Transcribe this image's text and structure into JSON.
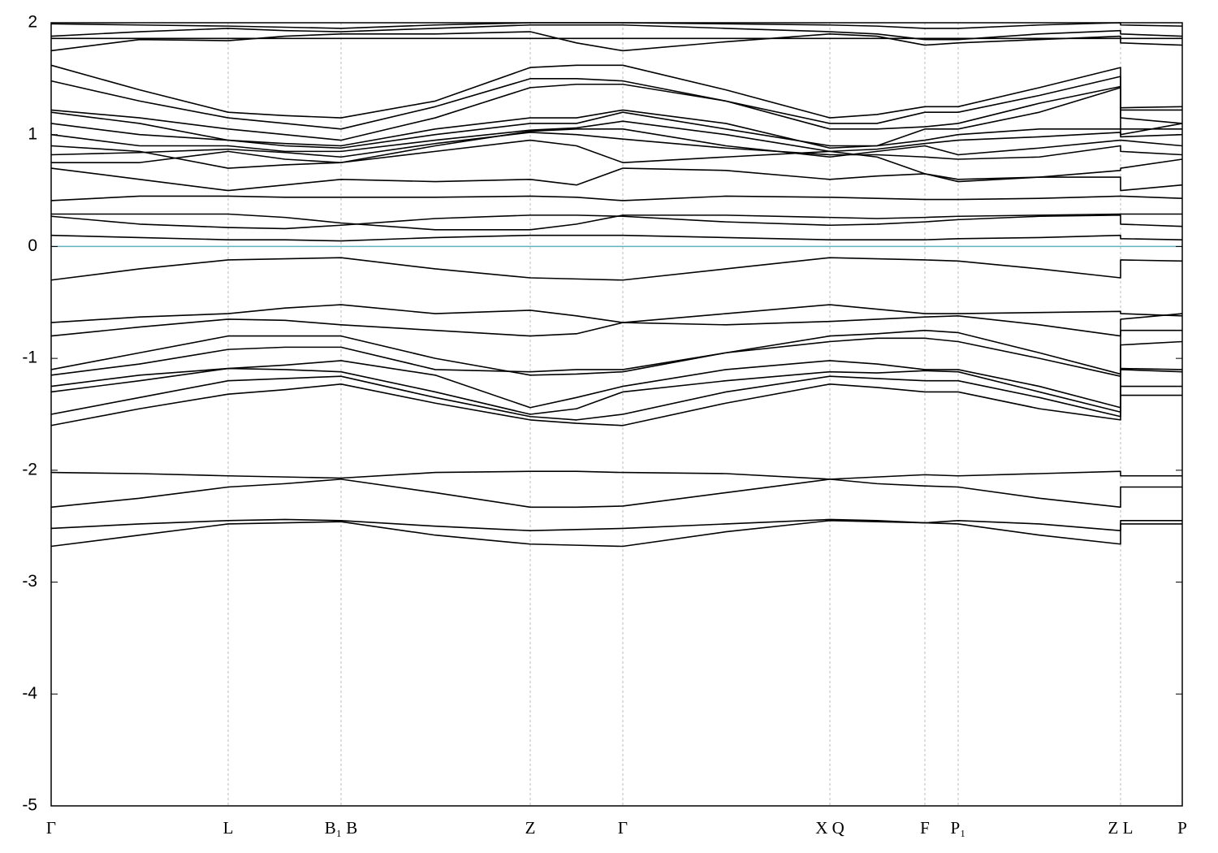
{
  "chart_data": {
    "type": "line",
    "xlim": [
      0,
      1393
    ],
    "ylim": [
      -5,
      2
    ],
    "yticks": [
      -5,
      -4,
      -3,
      -2,
      -1,
      0,
      1,
      2
    ],
    "xticks": [
      {
        "value": 0,
        "label": "Γ"
      },
      {
        "value": 218,
        "label": "L"
      },
      {
        "value": 357,
        "label": "B₁ B"
      },
      {
        "value": 590,
        "label": "Z"
      },
      {
        "value": 704,
        "label": "Γ"
      },
      {
        "value": 959,
        "label": "X Q"
      },
      {
        "value": 1076,
        "label": "F"
      },
      {
        "value": 1117,
        "label": "P₁"
      },
      {
        "value": 1317,
        "label": "Z L"
      },
      {
        "value": 1393,
        "label": "P"
      }
    ],
    "vgrid": true,
    "reference_line": {
      "value": 0,
      "color": "#5fb3c0"
    },
    "line_color": "#000000",
    "x": [
      0,
      109,
      218,
      288,
      357,
      473,
      590,
      647,
      704,
      831,
      959,
      1017,
      1076,
      1117,
      1217,
      1317,
      1317,
      1393
    ],
    "series": [
      {
        "values": [
          -0.3,
          -0.2,
          -0.12,
          -0.11,
          -0.1,
          -0.2,
          -0.28,
          -0.29,
          -0.3,
          -0.2,
          -0.1,
          -0.11,
          -0.12,
          -0.13,
          -0.2,
          -0.28,
          -0.12,
          -0.13
        ]
      },
      {
        "values": [
          -0.68,
          -0.63,
          -0.6,
          -0.55,
          -0.52,
          -0.6,
          -0.57,
          -0.62,
          -0.68,
          -0.6,
          -0.52,
          -0.56,
          -0.6,
          -0.6,
          -0.59,
          -0.58,
          -0.6,
          -0.62
        ]
      },
      {
        "values": [
          -0.8,
          -0.72,
          -0.65,
          -0.66,
          -0.7,
          -0.75,
          -0.8,
          -0.78,
          -0.68,
          -0.7,
          -0.67,
          -0.65,
          -0.63,
          -0.62,
          -0.7,
          -0.8,
          -0.65,
          -0.6
        ]
      },
      {
        "values": [
          -1.1,
          -0.95,
          -0.8,
          -0.8,
          -0.8,
          -1.0,
          -1.15,
          -1.14,
          -1.12,
          -0.95,
          -0.8,
          -0.78,
          -0.75,
          -0.77,
          -0.95,
          -1.14,
          -0.75,
          -0.75
        ]
      },
      {
        "values": [
          -1.15,
          -1.05,
          -0.92,
          -0.9,
          -0.9,
          -1.1,
          -1.12,
          -1.1,
          -1.1,
          -0.95,
          -0.85,
          -0.82,
          -0.82,
          -0.85,
          -1.0,
          -1.16,
          -0.88,
          -0.85
        ]
      },
      {
        "values": [
          -1.25,
          -1.15,
          -1.09,
          -1.06,
          -1.02,
          -1.15,
          -1.44,
          -1.35,
          -1.25,
          -1.1,
          -1.02,
          -1.05,
          -1.1,
          -1.1,
          -1.25,
          -1.44,
          -1.09,
          -1.1
        ]
      },
      {
        "values": [
          -1.3,
          -1.2,
          -1.09,
          -1.1,
          -1.12,
          -1.3,
          -1.5,
          -1.45,
          -1.3,
          -1.2,
          -1.12,
          -1.13,
          -1.11,
          -1.12,
          -1.3,
          -1.48,
          -1.1,
          -1.12
        ]
      },
      {
        "values": [
          -1.5,
          -1.35,
          -1.2,
          -1.18,
          -1.16,
          -1.35,
          -1.52,
          -1.55,
          -1.5,
          -1.3,
          -1.16,
          -1.18,
          -1.2,
          -1.2,
          -1.35,
          -1.52,
          -1.25,
          -1.25
        ]
      },
      {
        "values": [
          -1.6,
          -1.45,
          -1.32,
          -1.28,
          -1.23,
          -1.4,
          -1.55,
          -1.58,
          -1.6,
          -1.4,
          -1.23,
          -1.26,
          -1.3,
          -1.3,
          -1.45,
          -1.55,
          -1.33,
          -1.33
        ]
      },
      {
        "values": [
          -2.02,
          -2.03,
          -2.05,
          -2.06,
          -2.07,
          -2.02,
          -2.01,
          -2.01,
          -2.02,
          -2.03,
          -2.08,
          -2.06,
          -2.04,
          -2.05,
          -2.03,
          -2.01,
          -2.05,
          -2.05
        ]
      },
      {
        "values": [
          -2.33,
          -2.25,
          -2.15,
          -2.12,
          -2.08,
          -2.2,
          -2.33,
          -2.33,
          -2.32,
          -2.2,
          -2.08,
          -2.12,
          -2.14,
          -2.15,
          -2.25,
          -2.33,
          -2.15,
          -2.15
        ]
      },
      {
        "values": [
          -2.52,
          -2.48,
          -2.45,
          -2.44,
          -2.45,
          -2.5,
          -2.54,
          -2.53,
          -2.52,
          -2.48,
          -2.44,
          -2.45,
          -2.47,
          -2.45,
          -2.48,
          -2.54,
          -2.45,
          -2.45
        ]
      },
      {
        "values": [
          -2.68,
          -2.58,
          -2.48,
          -2.47,
          -2.46,
          -2.58,
          -2.66,
          -2.67,
          -2.68,
          -2.55,
          -2.45,
          -2.46,
          -2.47,
          -2.48,
          -2.58,
          -2.66,
          -2.48,
          -2.48
        ]
      },
      {
        "values": [
          0.1,
          0.08,
          0.06,
          0.06,
          0.05,
          0.08,
          0.1,
          0.1,
          0.1,
          0.08,
          0.06,
          0.06,
          0.06,
          0.07,
          0.08,
          0.1,
          0.07,
          0.06
        ]
      },
      {
        "values": [
          0.27,
          0.2,
          0.17,
          0.16,
          0.19,
          0.25,
          0.28,
          0.28,
          0.27,
          0.22,
          0.19,
          0.2,
          0.22,
          0.24,
          0.27,
          0.28,
          0.2,
          0.18
        ]
      },
      {
        "values": [
          0.29,
          0.29,
          0.29,
          0.26,
          0.21,
          0.15,
          0.15,
          0.2,
          0.28,
          0.28,
          0.26,
          0.25,
          0.26,
          0.27,
          0.28,
          0.29,
          0.29,
          0.29
        ]
      },
      {
        "values": [
          0.41,
          0.45,
          0.45,
          0.44,
          0.44,
          0.44,
          0.45,
          0.44,
          0.41,
          0.45,
          0.44,
          0.43,
          0.42,
          0.42,
          0.43,
          0.45,
          0.45,
          0.43
        ]
      },
      {
        "values": [
          0.7,
          0.6,
          0.5,
          0.55,
          0.6,
          0.58,
          0.6,
          0.55,
          0.7,
          0.68,
          0.6,
          0.63,
          0.65,
          0.6,
          0.62,
          0.62,
          0.5,
          0.55
        ]
      },
      {
        "values": [
          0.75,
          0.75,
          0.85,
          0.78,
          0.75,
          0.85,
          0.95,
          0.9,
          0.75,
          0.8,
          0.85,
          0.8,
          0.65,
          0.58,
          0.62,
          0.68,
          0.7,
          0.78
        ]
      },
      {
        "values": [
          0.82,
          0.84,
          0.87,
          0.84,
          0.8,
          0.92,
          1.02,
          1.0,
          0.96,
          0.88,
          0.82,
          0.82,
          0.8,
          0.78,
          0.8,
          0.9,
          0.85,
          0.82
        ]
      },
      {
        "values": [
          0.9,
          0.85,
          0.7,
          0.73,
          0.75,
          0.9,
          1.03,
          1.05,
          1.05,
          0.9,
          0.8,
          0.85,
          0.9,
          0.82,
          0.88,
          0.95,
          0.95,
          0.9
        ]
      },
      {
        "values": [
          1.0,
          0.9,
          0.9,
          0.85,
          0.85,
          0.95,
          1.04,
          1.06,
          1.12,
          1.0,
          0.85,
          0.87,
          0.92,
          0.95,
          0.98,
          1.02,
          0.98,
          1.0
        ]
      },
      {
        "values": [
          1.1,
          1.0,
          0.95,
          0.9,
          0.88,
          1.0,
          1.1,
          1.1,
          1.2,
          1.05,
          0.9,
          0.9,
          0.95,
          1.0,
          1.05,
          1.05,
          1.05,
          1.05
        ]
      },
      {
        "values": [
          1.2,
          1.1,
          0.95,
          0.92,
          0.9,
          1.05,
          1.15,
          1.15,
          1.22,
          1.1,
          0.88,
          0.9,
          1.05,
          1.05,
          1.2,
          1.42,
          1.0,
          1.1
        ]
      },
      {
        "values": [
          1.22,
          1.15,
          1.05,
          1.0,
          0.95,
          1.15,
          1.42,
          1.45,
          1.45,
          1.3,
          1.05,
          1.05,
          1.07,
          1.1,
          1.28,
          1.43,
          1.15,
          1.1
        ]
      },
      {
        "values": [
          1.48,
          1.3,
          1.15,
          1.1,
          1.05,
          1.25,
          1.5,
          1.5,
          1.48,
          1.3,
          1.1,
          1.1,
          1.2,
          1.2,
          1.35,
          1.52,
          1.22,
          1.22
        ]
      },
      {
        "values": [
          1.62,
          1.4,
          1.2,
          1.17,
          1.15,
          1.3,
          1.6,
          1.62,
          1.62,
          1.4,
          1.15,
          1.18,
          1.25,
          1.25,
          1.42,
          1.6,
          1.24,
          1.25
        ]
      },
      {
        "values": [
          1.75,
          1.85,
          1.84,
          1.88,
          1.9,
          1.9,
          1.92,
          1.82,
          1.75,
          1.83,
          1.9,
          1.88,
          1.8,
          1.82,
          1.85,
          1.88,
          1.82,
          1.8
        ]
      },
      {
        "values": [
          1.86,
          1.86,
          1.86,
          1.86,
          1.86,
          1.86,
          1.86,
          1.86,
          1.86,
          1.86,
          1.86,
          1.86,
          1.86,
          1.86,
          1.86,
          1.86,
          1.86,
          1.86
        ]
      },
      {
        "values": [
          1.88,
          1.92,
          1.95,
          1.93,
          1.92,
          1.95,
          1.98,
          1.98,
          1.98,
          1.95,
          1.92,
          1.9,
          1.85,
          1.85,
          1.9,
          1.93,
          1.9,
          1.88
        ]
      },
      {
        "values": [
          1.99,
          1.98,
          1.97,
          1.96,
          1.95,
          1.98,
          2.0,
          2.0,
          2.0,
          1.99,
          1.98,
          1.97,
          1.95,
          1.95,
          1.98,
          2.0,
          1.98,
          1.97
        ]
      }
    ]
  }
}
